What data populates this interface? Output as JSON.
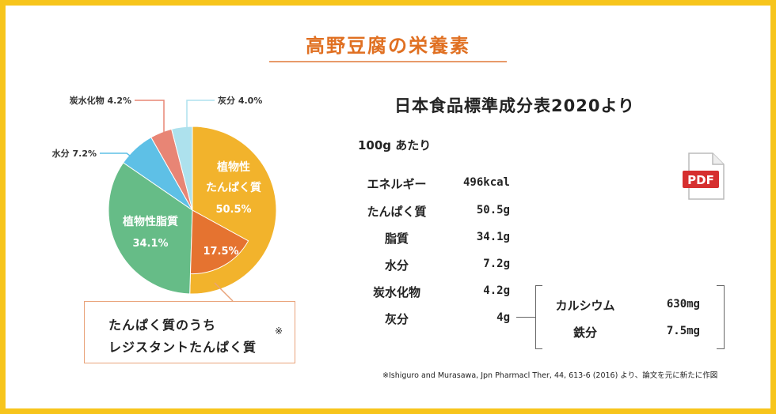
{
  "header": {
    "title": "高野豆腐の栄養素",
    "subtitle": "日本食品標準成分表2020より"
  },
  "table": {
    "per": "100g あたり",
    "rows": [
      {
        "name": "エネルギー",
        "value": "496kcal"
      },
      {
        "name": "たんぱく質",
        "value": "50.5g"
      },
      {
        "name": "脂質",
        "value": "34.1g"
      },
      {
        "name": "水分",
        "value": "7.2g"
      },
      {
        "name": "炭水化物",
        "value": "4.2g"
      },
      {
        "name": "灰分",
        "value": "4g"
      }
    ],
    "minerals": [
      {
        "name": "カルシウム",
        "value": "630mg"
      },
      {
        "name": "鉄分",
        "value": "7.5mg"
      }
    ]
  },
  "callout": {
    "line1": "たんぱく質のうち",
    "line2": "レジスタントたんぱく質",
    "mark": "※"
  },
  "pdf": {
    "label": "PDF"
  },
  "footnote": "※Ishiguro and Murasawa, Jpn Pharmacl Ther, 44, 613-6 (2016) より、論文を元に新たに作図",
  "chart_data": {
    "type": "pie",
    "slices": [
      {
        "name": "植物性\nたんぱく質",
        "value": 50.5,
        "label": "50.5%",
        "color": "#f2b32c"
      },
      {
        "name": "植物性脂質",
        "value": 34.1,
        "label": "34.1%",
        "color": "#66bc87"
      },
      {
        "name": "水分",
        "value": 7.2,
        "label": "7.2%",
        "color": "#5ec0e6"
      },
      {
        "name": "炭水化物",
        "value": 4.2,
        "label": "4.2%",
        "color": "#e88575"
      },
      {
        "name": "灰分",
        "value": 4.0,
        "label": "4.0%",
        "color": "#ade1ed"
      }
    ],
    "sub_slice": {
      "of": "植物性\nたんぱく質",
      "value": 17.5,
      "label": "17.5%",
      "color": "#e57330"
    },
    "colors": {
      "accent": "#e07022",
      "frame": "#f7c51c",
      "leader": "#e9a37a"
    }
  }
}
